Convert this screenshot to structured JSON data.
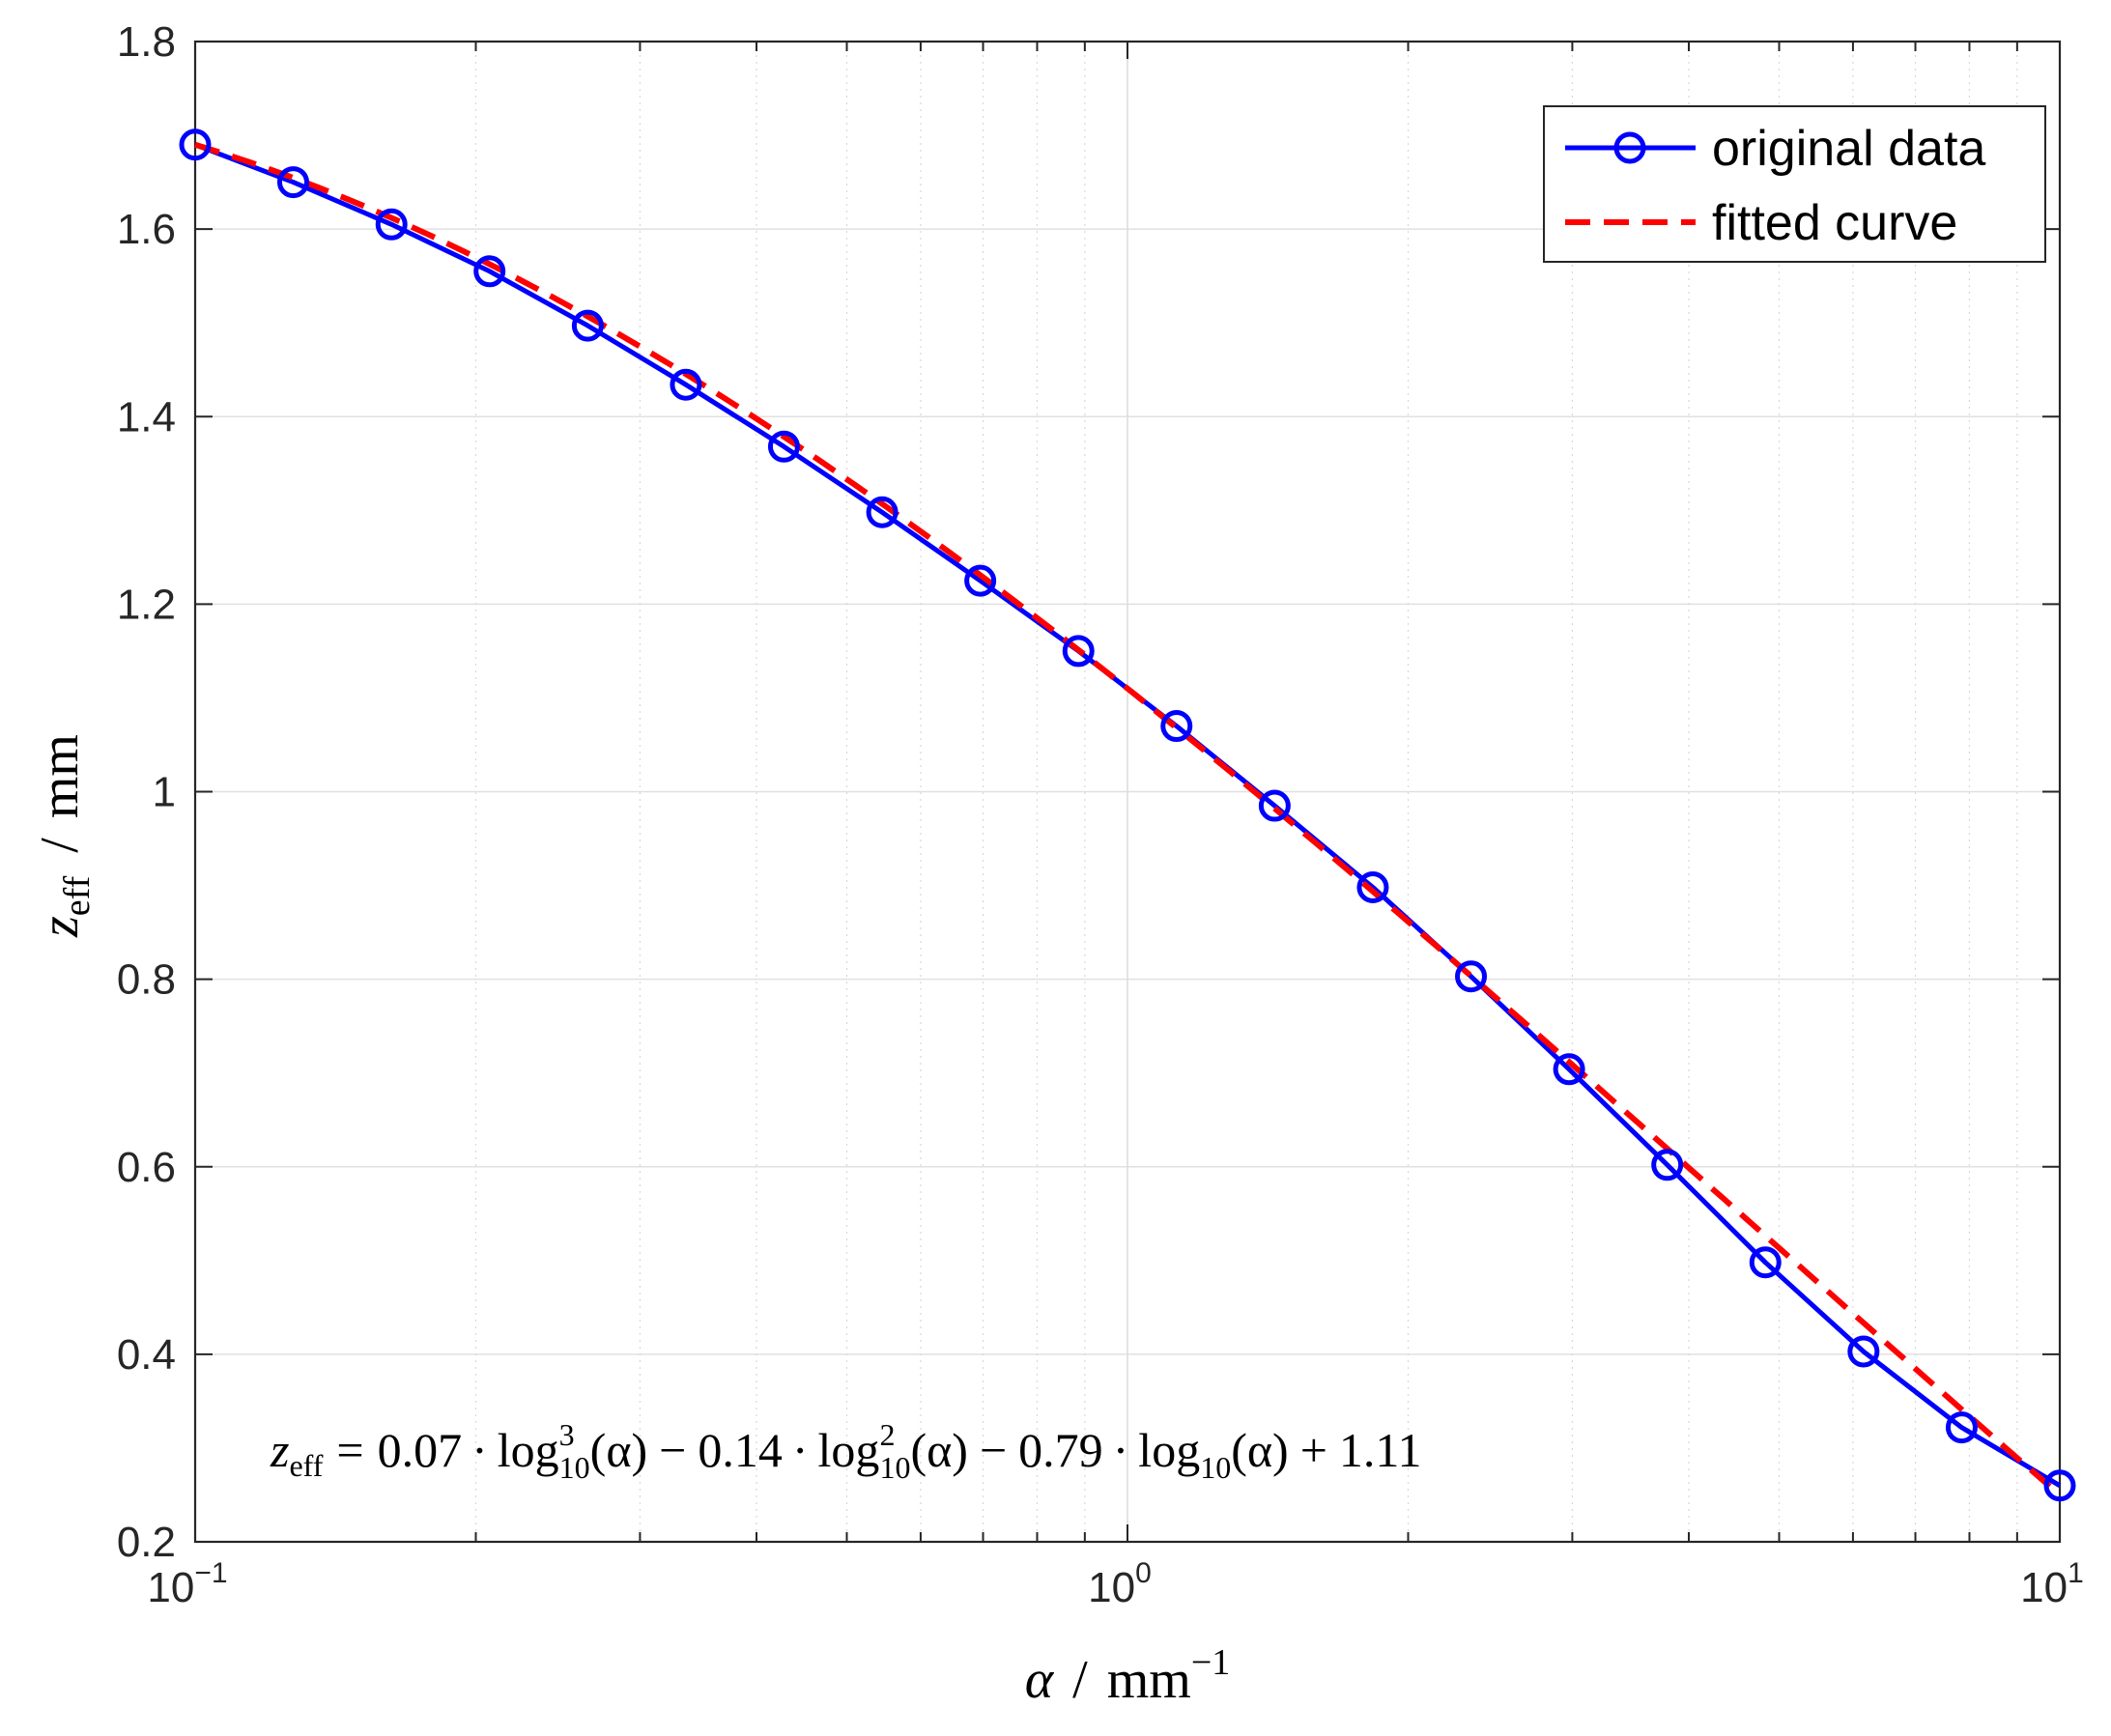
{
  "chart_data": {
    "type": "line",
    "x_scale": "log",
    "xlim": [
      0.1,
      10
    ],
    "ylim": [
      0.2,
      1.8
    ],
    "grid": true,
    "legend_position": "top-right",
    "x_tick_labels": [
      {
        "base": "10",
        "exp": "−1",
        "value": 0.1
      },
      {
        "base": "10",
        "exp": "0",
        "value": 1
      },
      {
        "base": "10",
        "exp": "1",
        "value": 10
      }
    ],
    "y_tick_labels": [
      "0.2",
      "0.4",
      "0.6",
      "0.8",
      "1",
      "1.2",
      "1.4",
      "1.6",
      "1.8"
    ],
    "y_ticks": [
      0.2,
      0.4,
      0.6,
      0.8,
      1.0,
      1.2,
      1.4,
      1.6,
      1.8
    ],
    "xlabel": {
      "symbol": "α",
      "sep": "/",
      "unit": "mm",
      "unit_exp": "−1"
    },
    "ylabel": {
      "symbol": "z",
      "sub": "eff",
      "sep": "/",
      "unit": "mm"
    },
    "series": [
      {
        "name": "original data",
        "color": "#0000ff",
        "style": "solid-with-circle-markers",
        "x": [
          0.1,
          0.1274,
          0.1624,
          0.2069,
          0.2637,
          0.336,
          0.4281,
          0.5456,
          0.6952,
          0.8859,
          1.1288,
          1.4384,
          1.833,
          2.3357,
          2.9764,
          3.7927,
          4.8329,
          6.1585,
          7.8476,
          10.0
        ],
        "values": [
          1.69,
          1.65,
          1.605,
          1.555,
          1.497,
          1.434,
          1.368,
          1.298,
          1.225,
          1.15,
          1.07,
          0.985,
          0.898,
          0.803,
          0.704,
          0.602,
          0.498,
          0.403,
          0.322,
          0.26
        ]
      },
      {
        "name": "fitted curve",
        "color": "#ff0000",
        "style": "dashed",
        "coefficients": {
          "a3": 0.07,
          "a2": -0.14,
          "a1": -0.79,
          "a0": 1.11
        }
      }
    ],
    "annotation": {
      "lhs": "z",
      "lhs_sub": "eff",
      "eq": "=",
      "c3": "0.07",
      "c2": "0.14",
      "c1": "0.79",
      "c0": "1.11",
      "dot": "·",
      "minus": "−",
      "plus": "+",
      "log": "log",
      "log_sub": "10",
      "pow3": "3",
      "pow2": "2",
      "arg": "(α)"
    }
  }
}
